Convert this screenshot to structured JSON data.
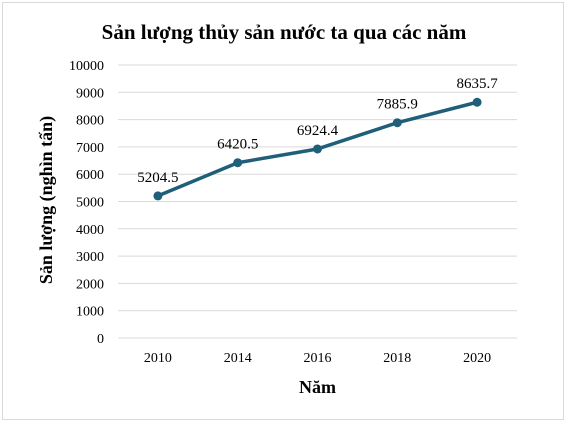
{
  "chart_data": {
    "type": "line",
    "title": "Sản lượng thủy sản nước ta qua các năm",
    "xlabel": "Năm",
    "ylabel": "Sản lượng (nghìn tấn)",
    "categories": [
      "2010",
      "2014",
      "2016",
      "2018",
      "2020"
    ],
    "series": [
      {
        "values": [
          5204.5,
          6420.5,
          6924.4,
          7885.9,
          8635.7
        ]
      }
    ],
    "data_labels": [
      "5204.5",
      "6420.5",
      "6924.4",
      "7885.9",
      "8635.7"
    ],
    "y_ticks": [
      "0",
      "1000",
      "2000",
      "3000",
      "4000",
      "5000",
      "6000",
      "7000",
      "8000",
      "9000",
      "10000"
    ],
    "ylim": [
      0,
      10000
    ],
    "grid": "horizontal",
    "legend": "none",
    "colors": {
      "line": "#1f5f7a",
      "grid": "#d9d9d9"
    }
  }
}
